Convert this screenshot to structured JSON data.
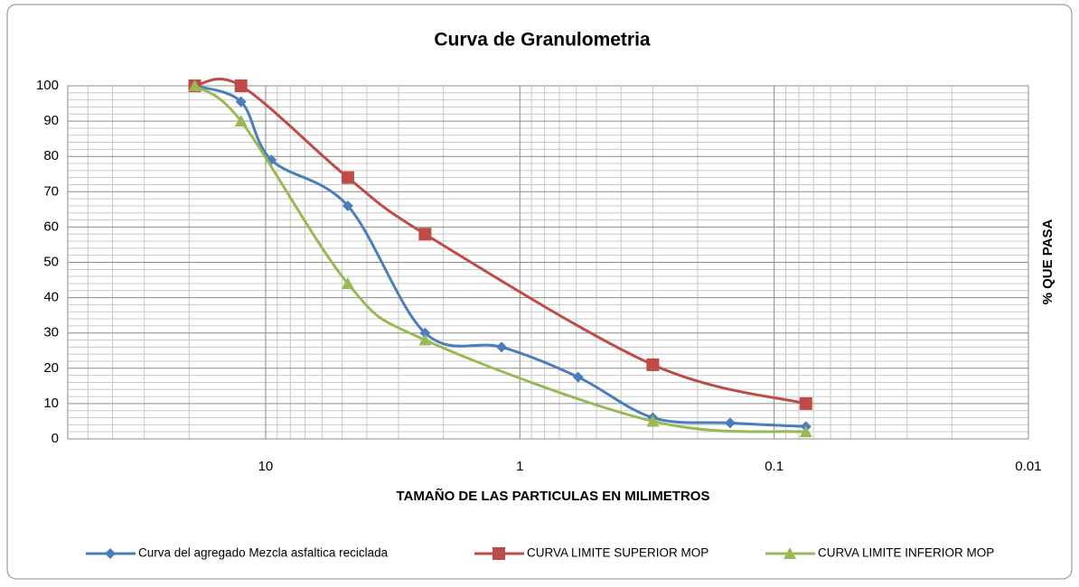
{
  "chart_data": {
    "type": "line",
    "title": "Curva de Granulometria",
    "x_label": "TAMAÑO  DE LAS PARTICULAS EN MILIMETROS",
    "y_label": "% QUE PASA",
    "xlog": true,
    "xlim": [
      60,
      0.01
    ],
    "xticks": [
      10,
      1,
      0.1,
      0.01
    ],
    "ylim": [
      0,
      100
    ],
    "yticks": [
      0,
      10,
      20,
      30,
      40,
      50,
      60,
      70,
      80,
      90,
      100
    ],
    "grid": true,
    "legend": "bottom",
    "series": [
      {
        "name": "Curva del agregado Mezcla asfaltica reciclada",
        "color": "#4a7ebb",
        "marker": "diamond",
        "x": [
          19,
          12.5,
          9.5,
          4.75,
          2.36,
          1.18,
          0.59,
          0.3,
          0.149,
          0.075
        ],
        "values": [
          100,
          95.5,
          79,
          66,
          30,
          26,
          17.5,
          6,
          4.5,
          3.5
        ]
      },
      {
        "name": "CURVA LIMITE SUPERIOR MOP",
        "color": "#be4b48",
        "marker": "square",
        "x": [
          19,
          12.5,
          4.75,
          2.36,
          0.3,
          0.075
        ],
        "values": [
          100,
          100,
          74,
          58,
          21,
          10
        ]
      },
      {
        "name": "CURVA LIMITE INFERIOR MOP",
        "color": "#98b954",
        "marker": "triangle",
        "x": [
          19,
          12.5,
          4.75,
          2.36,
          0.3,
          0.075
        ],
        "values": [
          100,
          90,
          44,
          28,
          5,
          2
        ]
      }
    ]
  }
}
